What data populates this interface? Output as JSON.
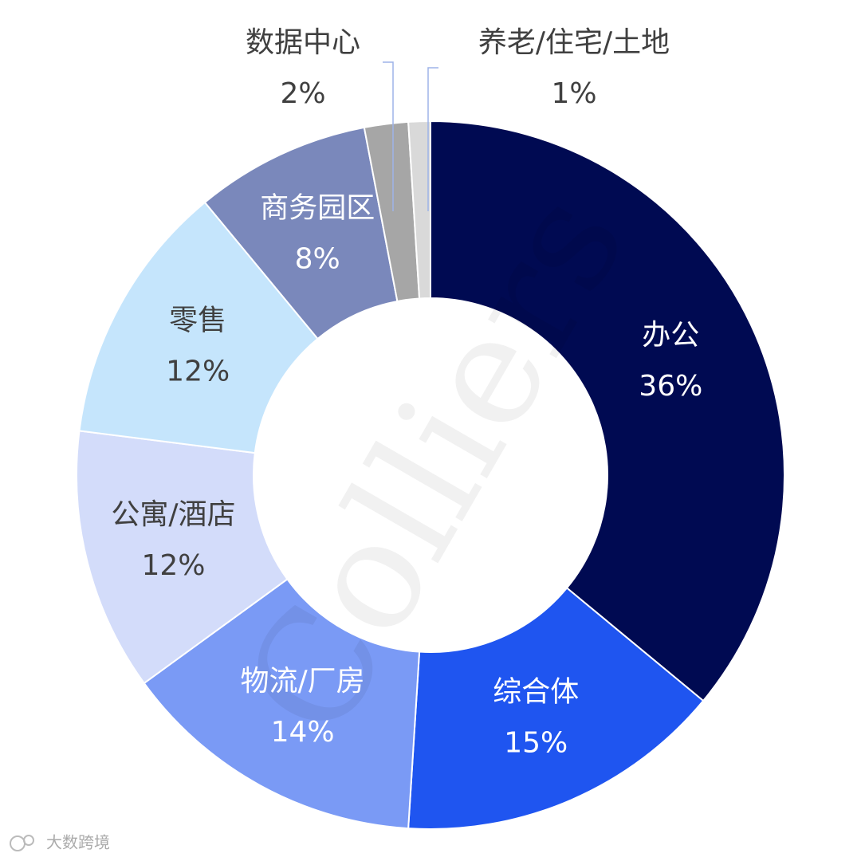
{
  "chart_data": {
    "type": "donut",
    "categories": [
      "办公",
      "综合体",
      "物流/厂房",
      "公寓/酒店",
      "零售",
      "商务园区",
      "数据中心",
      "养老/住宅/土地"
    ],
    "values": [
      36,
      15,
      14,
      12,
      12,
      8,
      2,
      1
    ],
    "value_labels": [
      "36%",
      "15%",
      "14%",
      "12%",
      "12%",
      "8%",
      "2%",
      "1%"
    ],
    "colors": [
      "#000a52",
      "#1f55f0",
      "#7a9af5",
      "#d3dcfa",
      "#c5e5fc",
      "#7a88bb",
      "#a6a6a6",
      "#d9d9d9"
    ],
    "watermark": "Colliers",
    "footer": "大数跨境"
  }
}
